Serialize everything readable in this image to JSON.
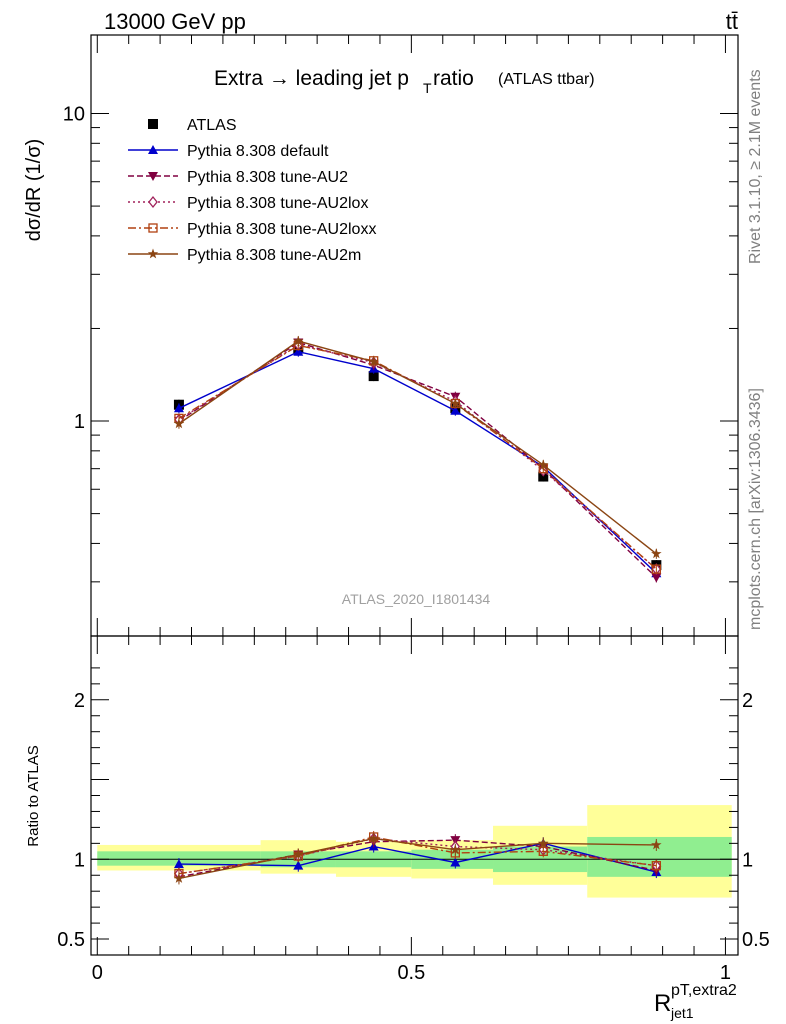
{
  "header": {
    "left": "13000 GeV pp",
    "right": "tt̄"
  },
  "side_text": {
    "top": "Rivet 3.1.10, ≥ 2.1M events",
    "bottom": "mcplots.cern.ch [arXiv:1306.3436]"
  },
  "watermark": "ATLAS_2020_I1801434",
  "title": {
    "main": "Extra → leading jet p",
    "sub": "T",
    "tail": " ratio",
    "small": "(ATLAS ttbar)"
  },
  "y_label_top": "dσ/dR (1/σ)",
  "y_label_bottom": "Ratio to ATLAS",
  "x_label": {
    "main": "R",
    "sup": "pT,extra2",
    "sub": "jet1"
  },
  "colors": {
    "atlas": "#000000",
    "default": "#0000cc",
    "au2": "#800040",
    "au2lox": "#a0205a",
    "au2loxx": "#b04010",
    "au2m": "#8b4513",
    "band_inner": "#90ee90",
    "band_outer": "#ffff99"
  },
  "chart_data": [
    {
      "type": "scatter",
      "yscale": "log",
      "ylim": [
        0.2,
        18
      ],
      "xlim": [
        -0.01,
        1.02
      ],
      "y_ticks": [
        {
          "value": 1,
          "label": "1"
        },
        {
          "value": 10,
          "label": "10"
        }
      ],
      "legend": "top-left",
      "x": [
        0.13,
        0.32,
        0.44,
        0.57,
        0.71,
        0.89
      ],
      "series": [
        {
          "name": "ATLAS",
          "key": "atlas",
          "style": "data",
          "values": [
            1.13,
            1.72,
            1.4,
            1.1,
            0.66,
            0.34
          ]
        },
        {
          "name": "Pythia 8.308 default",
          "key": "default",
          "style": "tri-up",
          "dash": "",
          "values": [
            1.1,
            1.68,
            1.48,
            1.08,
            0.71,
            0.32
          ]
        },
        {
          "name": "Pythia 8.308 tune-AU2",
          "key": "au2",
          "style": "tri-down",
          "dash": "6,3",
          "values": [
            1.0,
            1.8,
            1.52,
            1.2,
            0.7,
            0.31
          ]
        },
        {
          "name": "Pythia 8.308 tune-AU2lox",
          "key": "au2lox",
          "style": "diamond",
          "dash": "2,3",
          "values": [
            1.01,
            1.77,
            1.55,
            1.16,
            0.69,
            0.33
          ]
        },
        {
          "name": "Pythia 8.308 tune-AU2loxx",
          "key": "au2loxx",
          "style": "square-open",
          "dash": "8,3,2,3",
          "values": [
            1.02,
            1.76,
            1.57,
            1.14,
            0.7,
            0.33
          ]
        },
        {
          "name": "Pythia 8.308 tune-AU2m",
          "key": "au2m",
          "style": "star",
          "dash": "",
          "values": [
            0.98,
            1.82,
            1.56,
            1.14,
            0.72,
            0.37
          ]
        }
      ]
    },
    {
      "type": "scatter",
      "ylim": [
        0.4,
        2.4
      ],
      "xlim": [
        -0.01,
        1.02
      ],
      "x_ticks": [
        {
          "value": 0,
          "label": "0"
        },
        {
          "value": 0.5,
          "label": "0.5"
        },
        {
          "value": 1,
          "label": "1"
        }
      ],
      "y_ticks": [
        {
          "value": 0.5,
          "label": "0.5"
        },
        {
          "value": 1,
          "label": "1"
        },
        {
          "value": 2,
          "label": "2"
        }
      ],
      "bins": [
        {
          "lo": 0.0,
          "hi": 0.26,
          "inner": [
            0.96,
            1.05
          ],
          "outer": [
            0.93,
            1.09
          ]
        },
        {
          "lo": 0.26,
          "hi": 0.38,
          "inner": [
            0.95,
            1.05
          ],
          "outer": [
            0.91,
            1.12
          ]
        },
        {
          "lo": 0.38,
          "hi": 0.5,
          "inner": [
            0.95,
            1.05
          ],
          "outer": [
            0.89,
            1.11
          ]
        },
        {
          "lo": 0.5,
          "hi": 0.63,
          "inner": [
            0.94,
            1.06
          ],
          "outer": [
            0.88,
            1.12
          ]
        },
        {
          "lo": 0.63,
          "hi": 0.78,
          "inner": [
            0.92,
            1.08
          ],
          "outer": [
            0.84,
            1.21
          ]
        },
        {
          "lo": 0.78,
          "hi": 1.01,
          "inner": [
            0.89,
            1.14
          ],
          "outer": [
            0.76,
            1.34
          ]
        }
      ],
      "x": [
        0.13,
        0.32,
        0.44,
        0.57,
        0.71,
        0.89
      ],
      "series": [
        {
          "key": "default",
          "style": "tri-up",
          "dash": "",
          "values": [
            0.97,
            0.96,
            1.08,
            0.98,
            1.1,
            0.92
          ]
        },
        {
          "key": "au2",
          "style": "tri-down",
          "dash": "6,3",
          "values": [
            0.89,
            1.03,
            1.11,
            1.12,
            1.08,
            0.93
          ]
        },
        {
          "key": "au2lox",
          "style": "diamond",
          "dash": "2,3",
          "values": [
            0.91,
            1.02,
            1.13,
            1.08,
            1.06,
            0.96
          ]
        },
        {
          "key": "au2loxx",
          "style": "square-open",
          "dash": "8,3,2,3",
          "values": [
            0.91,
            1.02,
            1.14,
            1.04,
            1.05,
            0.96
          ]
        },
        {
          "key": "au2m",
          "style": "star",
          "dash": "",
          "values": [
            0.88,
            1.03,
            1.13,
            1.06,
            1.1,
            1.09
          ]
        }
      ]
    }
  ]
}
